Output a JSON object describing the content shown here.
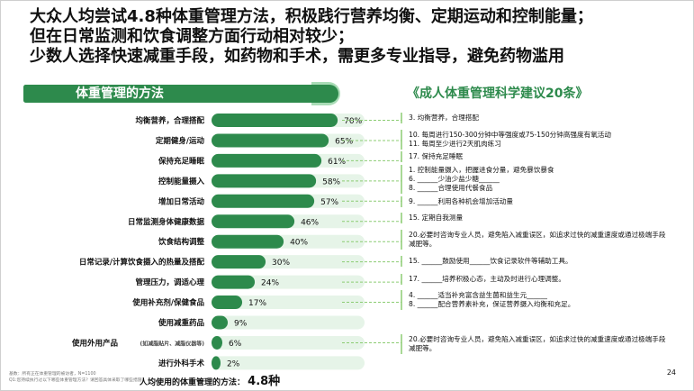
{
  "headline": [
    "大众人均尝试4.8种体重管理方法，积极践行营养均衡、定期运动和控制能量；",
    "但在日常监测和饮食调整方面行动相对较少；",
    "少数人选择快速减重手段，如药物和手术，需更多专业指导，避免药物滥用"
  ],
  "section_title": "体重管理的方法",
  "recommendation_title": "《成人体重管理科学建议20条》",
  "chart_data": {
    "type": "bar",
    "orientation": "horizontal",
    "categories": [
      "均衡营养，合理搭配",
      "定期健身/运动",
      "保持充足睡眠",
      "控制能量摄入",
      "增加日常活动",
      "日常监测身体健康数据",
      "饮食结构调整",
      "日常记录/计算饮食摄入的热量及搭配",
      "管理压力，调适心理",
      "使用补充剂/保健食品",
      "使用减重药品",
      "使用外用产品",
      "进行外科手术"
    ],
    "category_notes": [
      "",
      "",
      "",
      "",
      "",
      "",
      "",
      "",
      "",
      "",
      "",
      "(如减脂贴片、减脂仪器等)",
      ""
    ],
    "values": [
      70,
      65,
      61,
      58,
      57,
      46,
      40,
      30,
      24,
      17,
      9,
      6,
      2
    ],
    "value_labels": [
      "70%",
      "65%",
      "61%",
      "58%",
      "57%",
      "46%",
      "40%",
      "30%",
      "24%",
      "17%",
      "9%",
      "6%",
      "2%"
    ],
    "xlim": [
      0,
      100
    ],
    "bar_color": "#2d8a4c",
    "track_color": "#e6f4e8",
    "connector_color": "#8ccc73"
  },
  "recommendations": [
    {
      "lines": [
        "3.  均衡营养，合理搭配"
      ]
    },
    {
      "lines": [
        "10. 每周进行150-300分钟中等强度或75-150分钟高强度有氧活动",
        "11. 每周至少进行2天肌肉练习"
      ]
    },
    {
      "lines": [
        "17. 保持充足睡眠"
      ]
    },
    {
      "lines": [
        "1.  控制能量摄入，把握进食分量，避免暴饮暴食",
        "6.  ______少油少盐少糖______",
        "8.  ______合理使用代餐食品"
      ]
    },
    {
      "lines": [
        "9.  ______利用各种机会增加活动量"
      ]
    },
    {
      "lines": [
        "15. 定期自我测量"
      ]
    },
    {
      "lines": [
        "20.必要时咨询专业人员，避免陷入减重误区，如追求过快的减重速度或通过极端手段减肥等。"
      ]
    },
    {
      "lines": [
        "15. ______鼓励使用______饮食记录软件等辅助工具。"
      ]
    },
    {
      "lines": [
        "17. ______培养积极心态，主动及时进行心理调整。"
      ]
    },
    {
      "lines": [
        "4.  ______适当补充富含益生菌和益生元______",
        "8.  ______配合营养素补充，保证营养摄入均衡和充足。"
      ]
    },
    {
      "lines": [
        "20.必要时咨询专业人员，避免陷入减重误区，如追求过快的减重速度或通过极端手段减肥等。"
      ]
    }
  ],
  "footnotes": [
    "基数：所有正在体重管理的被访者，N=1100",
    "Q1:您持续执行过以下哪些体重管理方法？请回答具体采取了哪些措施？"
  ],
  "average": {
    "label": "人均使用的体重管理的方法：",
    "value": "4.8种"
  },
  "page_number": "24"
}
